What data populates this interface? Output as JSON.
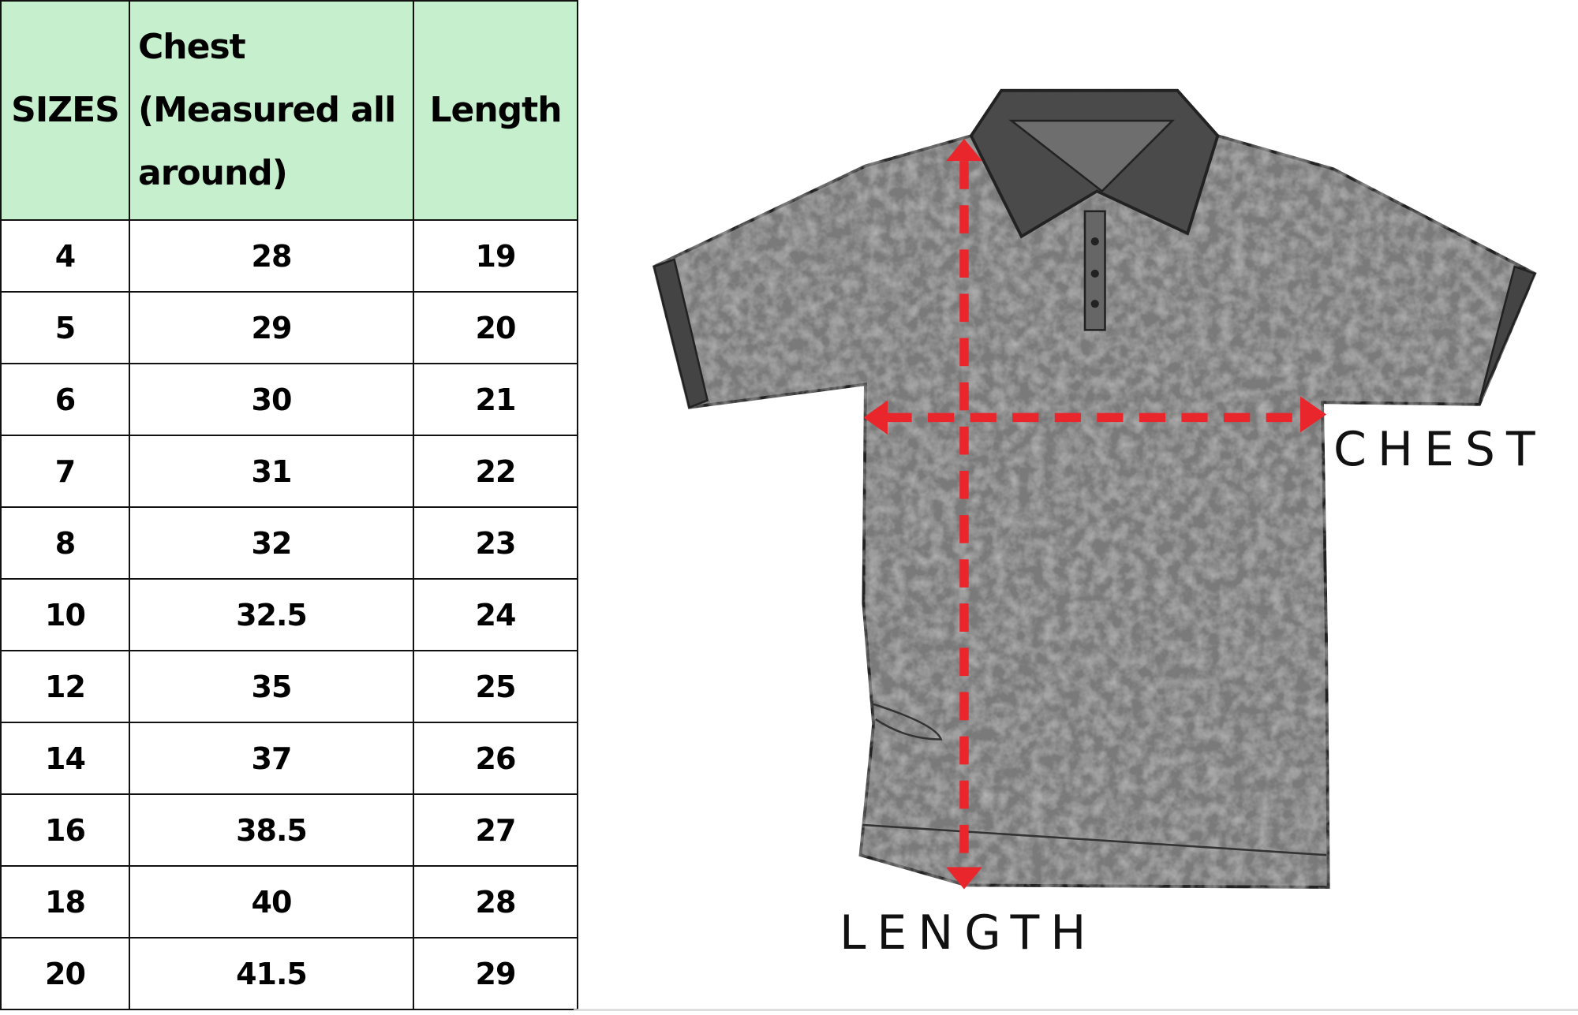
{
  "table": {
    "headers": [
      "SIZES",
      "Chest (Measured all around)",
      "Length"
    ],
    "header_bg": "#c6efce",
    "rows": [
      [
        "4",
        "28",
        "19"
      ],
      [
        "5",
        "29",
        "20"
      ],
      [
        "6",
        "30",
        "21"
      ],
      [
        "7",
        "31",
        "22"
      ],
      [
        "8",
        "32",
        "23"
      ],
      [
        "10",
        "32.5",
        "24"
      ],
      [
        "12",
        "35",
        "25"
      ],
      [
        "14",
        "37",
        "26"
      ],
      [
        "16",
        "38.5",
        "27"
      ],
      [
        "18",
        "40",
        "28"
      ],
      [
        "20",
        "41.5",
        "29"
      ]
    ]
  },
  "diagram": {
    "chest_label": "CHEST",
    "length_label": "LENGTH",
    "shirt_color": "#7a7a7a",
    "arrow_color": "#e8262b"
  }
}
